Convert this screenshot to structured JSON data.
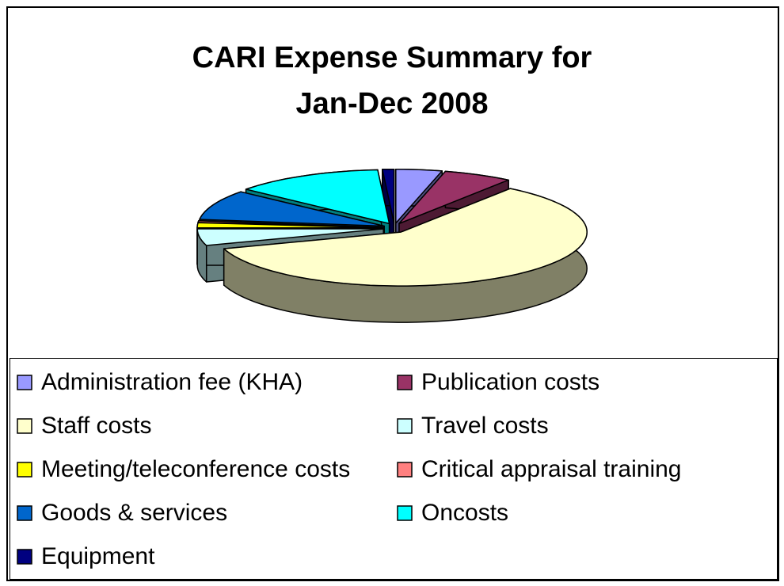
{
  "chart_data": {
    "type": "pie",
    "title": "CARI Expense Summary for Jan-Dec 2008",
    "categories": [
      "Administration fee (KHA)",
      "Publication costs",
      "Staff costs",
      "Travel costs",
      "Meeting/teleconference costs",
      "Critical appraisal training",
      "Goods & services",
      "Oncosts",
      "Equipment"
    ],
    "values": [
      4,
      6,
      60,
      5,
      1.5,
      0.5,
      9,
      13,
      1
    ],
    "colors": [
      "#9999ff",
      "#993366",
      "#ffffcc",
      "#ccffff",
      "#ffff00",
      "#ff8080",
      "#0066cc",
      "#00ffff",
      "#000080"
    ],
    "legend": "bottom"
  }
}
